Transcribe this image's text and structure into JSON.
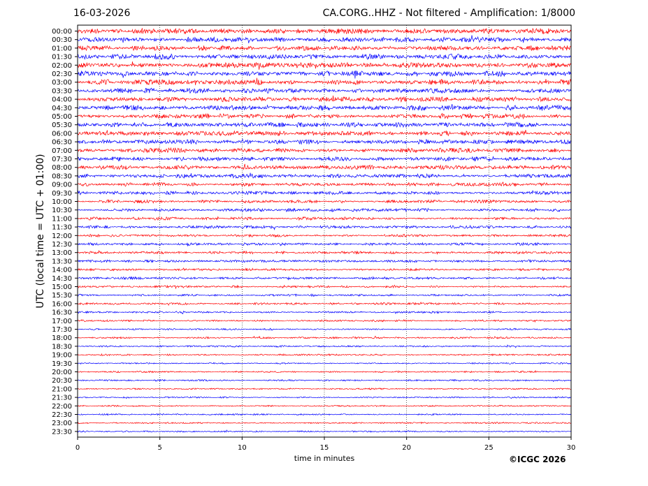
{
  "header": {
    "date": "16-03-2026",
    "station": "CA.CORG..HHZ - Not filtered - Amplification: 1/8000"
  },
  "footer": {
    "copyright": "©ICGC 2026"
  },
  "chart_data": {
    "type": "line",
    "xlabel": "time in minutes",
    "ylabel": "UTC (local time = UTC + 01:00)",
    "xlim": [
      0,
      30
    ],
    "x_ticks": [
      0,
      5,
      10,
      15,
      20,
      25,
      30
    ],
    "grid": "vertical dotted at x ticks",
    "categories": [
      "00:00",
      "00:30",
      "01:00",
      "01:30",
      "02:00",
      "02:30",
      "03:00",
      "03:30",
      "04:00",
      "04:30",
      "05:00",
      "05:30",
      "06:00",
      "06:30",
      "07:00",
      "07:30",
      "08:00",
      "08:30",
      "09:00",
      "09:30",
      "10:00",
      "10:30",
      "11:00",
      "11:30",
      "12:00",
      "12:30",
      "13:00",
      "13:30",
      "14:00",
      "14:30",
      "15:00",
      "15:30",
      "16:00",
      "16:30",
      "17:00",
      "17:30",
      "18:00",
      "18:30",
      "19:00",
      "19:30",
      "20:00",
      "20:30",
      "21:00",
      "21:30",
      "22:00",
      "22:30",
      "23:00",
      "23:30"
    ],
    "trace_colors": [
      "#ff0000",
      "#0000ff"
    ],
    "amplitude_profile": [
      1.0,
      1.0,
      1.0,
      1.0,
      1.0,
      1.0,
      1.0,
      0.95,
      0.95,
      0.95,
      0.9,
      0.9,
      0.9,
      0.85,
      0.85,
      0.8,
      0.8,
      0.75,
      0.7,
      0.65,
      0.6,
      0.6,
      0.55,
      0.55,
      0.5,
      0.5,
      0.5,
      0.45,
      0.45,
      0.45,
      0.4,
      0.4,
      0.4,
      0.38,
      0.36,
      0.35,
      0.33,
      0.32,
      0.31,
      0.3,
      0.3,
      0.3,
      0.29,
      0.29,
      0.28,
      0.28,
      0.28,
      0.28
    ]
  }
}
